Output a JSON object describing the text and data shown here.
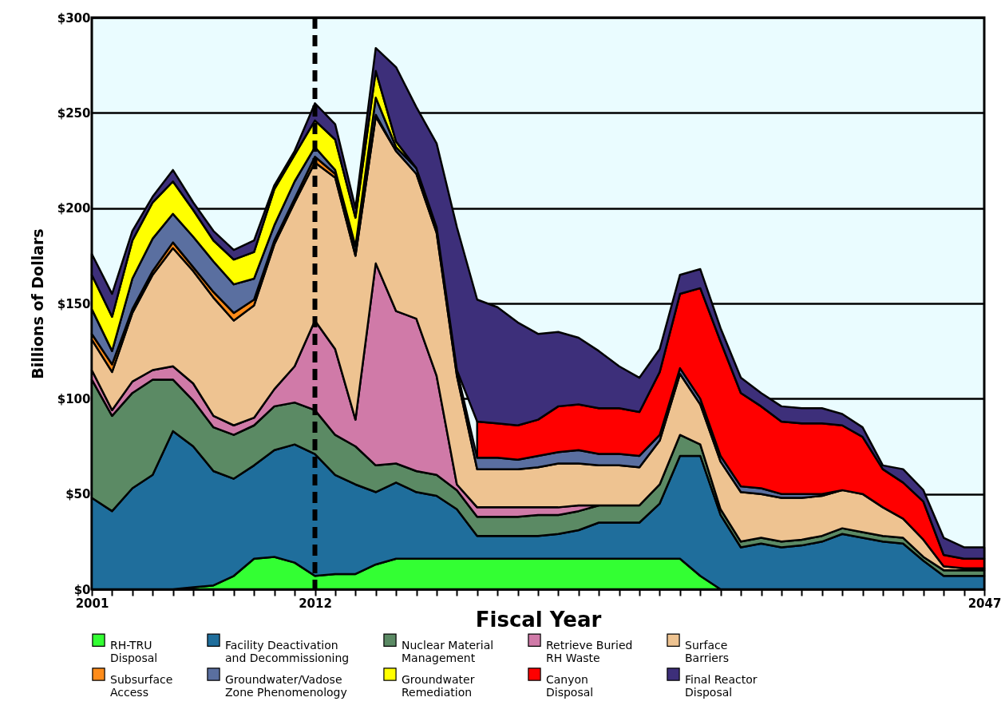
{
  "chart_data": {
    "type": "area",
    "stacked": true,
    "xlabel": "Fiscal Year",
    "ylabel": "Billions of Dollars",
    "categories": [
      "2001",
      null,
      null,
      null,
      null,
      null,
      null,
      null,
      null,
      null,
      null,
      "2012",
      null,
      null,
      null,
      null,
      null,
      null,
      null,
      null,
      null,
      null,
      null,
      null,
      null,
      null,
      null,
      null,
      null,
      null,
      null,
      null,
      null,
      null,
      null,
      null,
      null,
      null,
      null,
      null,
      null,
      null,
      null,
      null,
      "2047"
    ],
    "ylim": [
      0,
      300
    ],
    "yticks": [
      {
        "value": 0,
        "label": "$0"
      },
      {
        "value": 50,
        "label": "$50"
      },
      {
        "value": 100,
        "label": "$100"
      },
      {
        "value": 150,
        "label": "$150"
      },
      {
        "value": 200,
        "label": "$200"
      },
      {
        "value": 250,
        "label": "$250"
      },
      {
        "value": 300,
        "label": "$300"
      }
    ],
    "grid": "y",
    "legend": "bottom",
    "ref_lines": [
      {
        "axis": "x",
        "value": "2012",
        "line_style": "dashed",
        "color": "#000000"
      }
    ],
    "series": [
      {
        "name": "RH-TRU Disposal",
        "color": "#33ff33",
        "values": [
          0,
          0,
          0,
          0,
          0,
          1,
          2,
          7,
          16,
          17,
          14,
          7,
          8,
          8,
          13,
          16,
          16,
          16,
          16,
          16,
          16,
          16,
          16,
          16,
          16,
          16,
          16,
          16,
          16,
          16,
          7,
          0,
          null,
          null,
          null,
          null,
          null,
          null,
          null,
          null,
          null,
          null,
          null,
          null,
          null
        ]
      },
      {
        "name": "Facility Deactivation and Decommissioning",
        "color": "#1f6e9c",
        "values": [
          48,
          41,
          53,
          60,
          83,
          74,
          60,
          51,
          49,
          56,
          62,
          64,
          52,
          47,
          38,
          40,
          35,
          33,
          26,
          12,
          12,
          12,
          12,
          13,
          15,
          19,
          19,
          19,
          29,
          54,
          63,
          39,
          22,
          24,
          22,
          23,
          25,
          29,
          27,
          25,
          24,
          15,
          7,
          7,
          7
        ]
      },
      {
        "name": "Nuclear Material Management",
        "color": "#5b8a64",
        "values": [
          62,
          50,
          50,
          50,
          27,
          24,
          23,
          23,
          21,
          23,
          22,
          23,
          21,
          20,
          14,
          10,
          11,
          11,
          10,
          10,
          10,
          10,
          11,
          10,
          10,
          9,
          9,
          9,
          10,
          11,
          6,
          3,
          3,
          3,
          3,
          3,
          3,
          3,
          3,
          3,
          3,
          2,
          3,
          3,
          3
        ]
      },
      {
        "name": "Retrieve Buried RH Waste",
        "color": "#d07aa8",
        "values": [
          5,
          3,
          6,
          5,
          7,
          9,
          6,
          5,
          4,
          9,
          19,
          47,
          45,
          14,
          106,
          80,
          80,
          52,
          3,
          5,
          5,
          5,
          4,
          4,
          3,
          0,
          null,
          null,
          null,
          null,
          null,
          null,
          null,
          null,
          null,
          null,
          null,
          null,
          null,
          null,
          null,
          null,
          null,
          null,
          null
        ]
      },
      {
        "name": "Surface Barriers",
        "color": "#eec391",
        "values": [
          16,
          20,
          36,
          50,
          62,
          59,
          62,
          55,
          59,
          76,
          86,
          83,
          90,
          86,
          77,
          84,
          76,
          75,
          57,
          20,
          20,
          20,
          21,
          23,
          22,
          21,
          21,
          20,
          23,
          32,
          21,
          25,
          26,
          23,
          23,
          22,
          21,
          20,
          20,
          15,
          10,
          9,
          2,
          1,
          1
        ]
      },
      {
        "name": "Subsurface Access",
        "color": "#ff8c1a",
        "values": [
          3,
          4,
          2,
          2,
          3,
          2,
          3,
          4,
          3,
          2,
          2,
          3,
          2,
          1,
          1,
          0,
          null,
          null,
          null,
          null,
          null,
          null,
          null,
          null,
          null,
          null,
          null,
          null,
          null,
          null,
          null,
          null,
          null,
          null,
          null,
          null,
          null,
          null,
          null,
          null,
          null,
          null,
          null,
          null,
          null
        ]
      },
      {
        "name": "Groundwater/Vadose Zone Phenomenology",
        "color": "#5a6fa0",
        "values": [
          13,
          7,
          16,
          17,
          15,
          16,
          16,
          15,
          11,
          8,
          9,
          5,
          2,
          4,
          9,
          2,
          3,
          3,
          3,
          6,
          6,
          5,
          6,
          6,
          7,
          6,
          6,
          6,
          3,
          3,
          3,
          3,
          3,
          3,
          2,
          2,
          1,
          0,
          null,
          null,
          null,
          null,
          null,
          null,
          null
        ]
      },
      {
        "name": "Groundwater Remediation",
        "color": "#ffff00",
        "values": [
          18,
          18,
          20,
          19,
          17,
          14,
          11,
          13,
          14,
          19,
          14,
          14,
          16,
          15,
          14,
          3,
          0,
          null,
          null,
          null,
          null,
          null,
          null,
          null,
          null,
          null,
          null,
          null,
          null,
          null,
          null,
          null,
          null,
          null,
          null,
          null,
          null,
          null,
          null,
          null,
          null,
          null,
          null,
          null,
          null
        ]
      },
      {
        "name": "Canyon Disposal",
        "color": "#ff0000",
        "values": [
          null,
          null,
          null,
          null,
          null,
          null,
          null,
          null,
          null,
          null,
          null,
          null,
          null,
          null,
          null,
          null,
          null,
          null,
          null,
          19,
          18,
          18,
          19,
          24,
          24,
          24,
          24,
          23,
          33,
          39,
          58,
          60,
          49,
          43,
          38,
          37,
          37,
          34,
          30,
          20,
          19,
          20,
          6,
          5,
          5
        ]
      },
      {
        "name": "Final Reactor Disposal",
        "color": "#3d2f7a",
        "values": [
          11,
          12,
          5,
          3,
          6,
          4,
          5,
          5,
          6,
          2,
          2,
          9,
          8,
          5,
          12,
          39,
          32,
          44,
          75,
          64,
          61,
          54,
          45,
          39,
          35,
          30,
          22,
          18,
          12,
          10,
          10,
          7,
          8,
          7,
          8,
          8,
          8,
          6,
          5,
          2,
          7,
          6,
          9,
          6,
          6
        ]
      }
    ]
  }
}
